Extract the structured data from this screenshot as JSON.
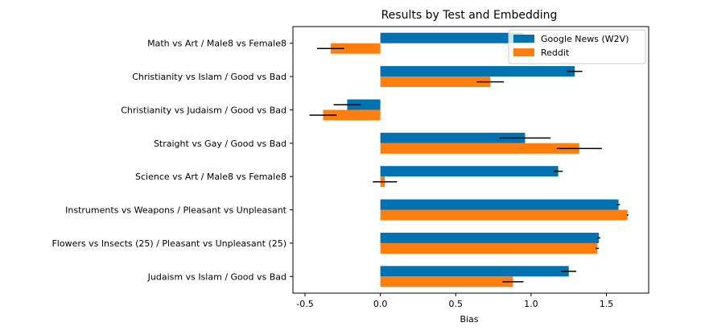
{
  "chart_data": {
    "type": "bar",
    "orientation": "horizontal",
    "title": "Results by Test and Embedding",
    "xlabel": "Bias",
    "ylabel": "",
    "xlim": [
      -0.58,
      1.78
    ],
    "xticks": [
      -0.5,
      0.0,
      0.5,
      1.0,
      1.5
    ],
    "xtick_labels": [
      "-0.5",
      "0.0",
      "0.5",
      "1.0",
      "1.5"
    ],
    "grid": false,
    "legend_position": "top-right",
    "categories": [
      "Math vs Art / Male8 vs Female8",
      "Christianity vs Islam /  Good vs Bad",
      "Christianity vs Judaism /  Good vs Bad",
      "Straight vs Gay / Good vs Bad",
      "Science vs Art / Male8 vs Female8",
      "Instruments vs Weapons /  Pleasant vs Unpleasant",
      "Flowers vs Insects (25) / Pleasant vs Unpleasant (25)",
      "Judaism vs Islam /  Good vs Bad"
    ],
    "series": [
      {
        "name": "Google News (W2V)",
        "color": "#0072b2",
        "values": [
          0.95,
          1.29,
          -0.22,
          0.96,
          1.18,
          1.58,
          1.45,
          1.25
        ],
        "errors": [
          0.0,
          0.05,
          0.09,
          0.17,
          0.03,
          0.01,
          0.01,
          0.05
        ]
      },
      {
        "name": "Reddit",
        "color": "#ff7f0e",
        "values": [
          -0.33,
          0.73,
          -0.38,
          1.32,
          0.03,
          1.64,
          1.44,
          0.88
        ],
        "errors": [
          0.09,
          0.09,
          0.09,
          0.15,
          0.08,
          0.005,
          0.01,
          0.07
        ]
      }
    ]
  }
}
